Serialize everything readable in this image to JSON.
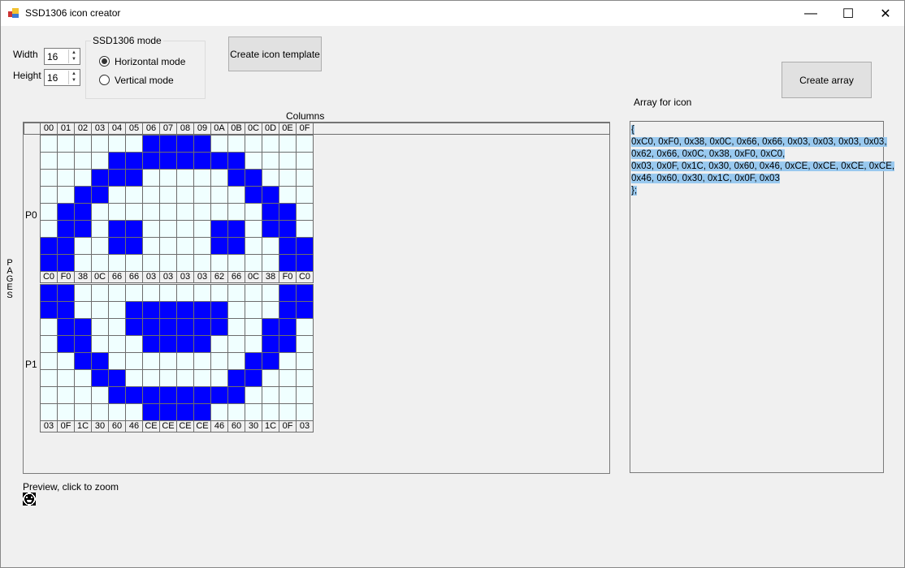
{
  "window": {
    "title": "SSD1306 icon creator",
    "minimize": "—",
    "maximize": "☐",
    "close": "✕"
  },
  "controls": {
    "width_label": "Width",
    "width_value": "16",
    "height_label": "Height",
    "height_value": "16",
    "mode_group": "SSD1306 mode",
    "mode_options": [
      "Horizontal mode",
      "Vertical mode"
    ],
    "selected_mode": "Horizontal mode",
    "create_template": "Create icon template",
    "create_array": "Create array"
  },
  "grid": {
    "columns_label": "Columns",
    "pages_label": "PAGES",
    "page_labels": [
      "P0",
      "P1"
    ],
    "column_headers": [
      "00",
      "01",
      "02",
      "03",
      "04",
      "05",
      "06",
      "07",
      "08",
      "09",
      "0A",
      "0B",
      "0C",
      "0D",
      "0E",
      "0F"
    ],
    "page_bytes": [
      [
        "C0",
        "F0",
        "38",
        "0C",
        "66",
        "66",
        "03",
        "03",
        "03",
        "03",
        "62",
        "66",
        "0C",
        "38",
        "F0",
        "C0"
      ],
      [
        "03",
        "0F",
        "1C",
        "30",
        "60",
        "46",
        "CE",
        "CE",
        "CE",
        "CE",
        "46",
        "60",
        "30",
        "1C",
        "0F",
        "03"
      ]
    ],
    "on_color": "#0000ff",
    "off_color": "#f0ffff"
  },
  "array": {
    "label": "Array for icon",
    "lines": [
      "{",
      "0xC0, 0xF0, 0x38, 0x0C, 0x66, 0x66, 0x03, 0x03, 0x03, 0x03,",
      "0x62, 0x66, 0x0C, 0x38, 0xF0, 0xC0,",
      "0x03, 0x0F, 0x1C, 0x30, 0x60, 0x46, 0xCE, 0xCE, 0xCE, 0xCE,",
      "0x46, 0x60, 0x30, 0x1C, 0x0F, 0x03",
      "};"
    ]
  },
  "preview": {
    "label": "Preview, click to zoom"
  }
}
